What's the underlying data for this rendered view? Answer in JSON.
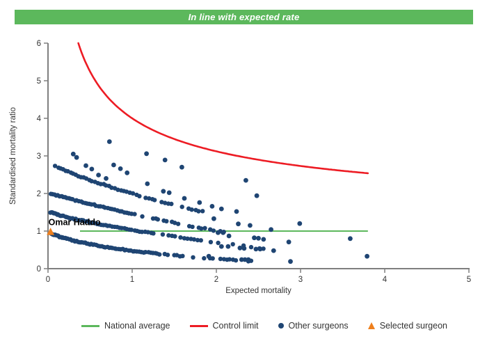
{
  "banner": {
    "text": "In line with expected rate",
    "bg_color": "#5cb85c",
    "text_color": "#ffffff"
  },
  "legend": {
    "items": [
      {
        "label": "National average",
        "type": "line",
        "color": "#5cb85c"
      },
      {
        "label": "Control limit",
        "type": "line",
        "color": "#ed1c24"
      },
      {
        "label": "Other surgeons",
        "type": "dot",
        "color": "#1f4573"
      },
      {
        "label": "Selected surgeon",
        "type": "triangle",
        "color": "#ee7f1d"
      }
    ]
  },
  "chart_data": {
    "type": "scatter",
    "title": "In line with expected rate",
    "xlabel": "Expected mortality",
    "ylabel": "Standardised mortality ratio",
    "xlim": [
      0,
      5
    ],
    "ylim": [
      0,
      6
    ],
    "x_ticks": [
      0,
      1,
      2,
      3,
      4,
      5
    ],
    "y_ticks": [
      0,
      1,
      2,
      3,
      4,
      5,
      6
    ],
    "grid": false,
    "axis_color": "#7f7f7f",
    "tick_label_color": "#333333",
    "point_color": "#1f4573",
    "national_average": {
      "value": 1.0,
      "x_start": 0.38,
      "x_end": 3.8,
      "color": "#5cb85c"
    },
    "control_limit": {
      "a": 1,
      "b": 3,
      "x_start": 0.36,
      "x_end": 3.8,
      "end_value": 2.54,
      "color": "#ed1c24"
    },
    "selected_surgeon": {
      "label": "Omar Haddo",
      "x": 0.03,
      "y": 0.98,
      "color": "#ee7f1d"
    },
    "other_surgeons": {
      "bands": [
        {
          "start": [
            0.09,
            2.72
          ],
          "mid": [
            0.92,
            2.05
          ],
          "end": [
            1.92,
            1.48
          ],
          "n": 52,
          "gap_start": 0.52
        },
        {
          "start": [
            0.03,
            2.0
          ],
          "mid": [
            0.92,
            1.5
          ],
          "end": [
            2.12,
            0.95
          ],
          "n": 72,
          "gap_start": 0.55
        },
        {
          "start": [
            0.03,
            1.5
          ],
          "mid": [
            0.92,
            1.06
          ],
          "end": [
            2.56,
            0.54
          ],
          "n": 86,
          "gap_start": 0.6
        },
        {
          "start": [
            0.04,
            0.93
          ],
          "mid": [
            0.92,
            0.5
          ],
          "end": [
            2.45,
            0.2
          ],
          "n": 100,
          "gap_start": 0.65
        }
      ],
      "points": [
        [
          0.3,
          3.05
        ],
        [
          0.34,
          2.96
        ],
        [
          0.45,
          2.74
        ],
        [
          0.52,
          2.65
        ],
        [
          0.6,
          2.49
        ],
        [
          0.69,
          2.4
        ],
        [
          0.78,
          2.76
        ],
        [
          0.86,
          2.66
        ],
        [
          0.94,
          2.55
        ],
        [
          0.73,
          3.38
        ],
        [
          1.17,
          3.06
        ],
        [
          1.39,
          2.89
        ],
        [
          1.59,
          2.7
        ],
        [
          1.18,
          2.26
        ],
        [
          1.37,
          2.06
        ],
        [
          1.44,
          2.02
        ],
        [
          1.62,
          1.87
        ],
        [
          1.8,
          1.76
        ],
        [
          1.95,
          1.66
        ],
        [
          2.35,
          2.35
        ],
        [
          2.48,
          1.94
        ],
        [
          2.06,
          1.59
        ],
        [
          2.24,
          1.52
        ],
        [
          1.97,
          1.33
        ],
        [
          2.26,
          1.19
        ],
        [
          2.4,
          1.15
        ],
        [
          2.99,
          1.2
        ],
        [
          2.65,
          1.04
        ],
        [
          2.02,
          0.96
        ],
        [
          2.08,
          0.96
        ],
        [
          2.15,
          0.87
        ],
        [
          2.45,
          0.82
        ],
        [
          2.5,
          0.81
        ],
        [
          2.56,
          0.78
        ],
        [
          2.86,
          0.71
        ],
        [
          2.06,
          0.59
        ],
        [
          2.14,
          0.59
        ],
        [
          2.28,
          0.55
        ],
        [
          2.33,
          0.54
        ],
        [
          2.47,
          0.52
        ],
        [
          2.52,
          0.52
        ],
        [
          2.68,
          0.48
        ],
        [
          1.91,
          0.33
        ],
        [
          2.3,
          0.24
        ],
        [
          2.34,
          0.24
        ],
        [
          2.38,
          0.24
        ],
        [
          2.88,
          0.19
        ],
        [
          3.59,
          0.8
        ],
        [
          3.79,
          0.33
        ]
      ]
    }
  }
}
